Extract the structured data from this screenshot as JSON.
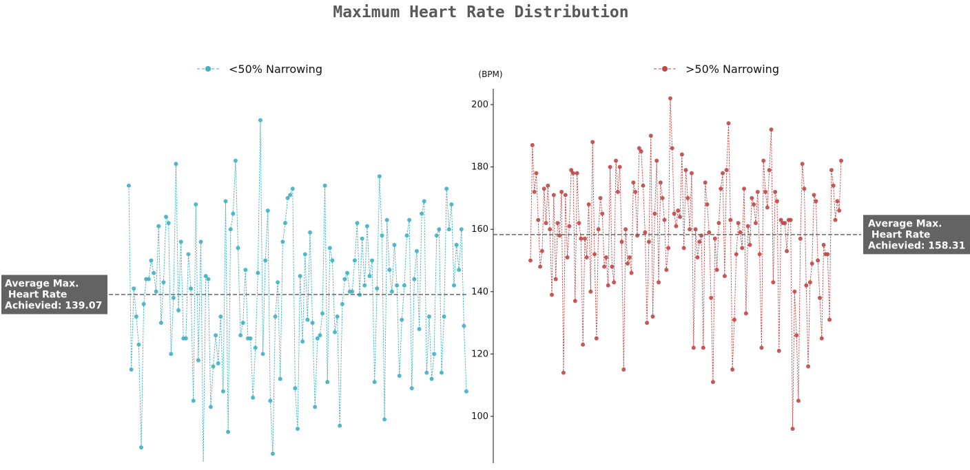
{
  "chart_data": {
    "type": "line",
    "title": "Maximum Heart Rate Distribution",
    "ylabel": "(BPM)",
    "ylim": [
      86,
      205
    ],
    "y_ticks": [
      100,
      120,
      140,
      160,
      180,
      200
    ],
    "grid": false,
    "legend_placement": "top-center",
    "panels": [
      {
        "name": "<50% Narrowing",
        "color": "#40b0c4",
        "average_value": 139.07,
        "average_label": "Average Max.\n Heart Rate\nAchievied: 139.07",
        "values": [
          174,
          115,
          141,
          132,
          123,
          90,
          136,
          144,
          144,
          150,
          146,
          140,
          161,
          130,
          143,
          164,
          162,
          120,
          138,
          181,
          134,
          156,
          125,
          125,
          152,
          141,
          105,
          168,
          118,
          156,
          85,
          145,
          144,
          103,
          116,
          126,
          117,
          132,
          108,
          169,
          95,
          160,
          165,
          182,
          154,
          126,
          130,
          147,
          125,
          125,
          106,
          122,
          146,
          195,
          120,
          150,
          166,
          105,
          88,
          132,
          143,
          112,
          156,
          162,
          170,
          171,
          173,
          109,
          96,
          145,
          124,
          152,
          131,
          159,
          130,
          103,
          125,
          126,
          133,
          174,
          111,
          154,
          150,
          127,
          132,
          97,
          136,
          144,
          146,
          140,
          140,
          150,
          162,
          139,
          157,
          142,
          161,
          145,
          150,
          111,
          141,
          177,
          158,
          99,
          163,
          147,
          140,
          155,
          142,
          113,
          131,
          142,
          158,
          163,
          109,
          144,
          153,
          128,
          165,
          169,
          114,
          132,
          112,
          120,
          158,
          160,
          114,
          132,
          173,
          160,
          168,
          142,
          155,
          147,
          160,
          129,
          108
        ]
      },
      {
        "name": ">50% Narrowing",
        "color": "#c04848",
        "average_value": 158.31,
        "average_label": "Average Max.\n Heart Rate\nAchievied: 158.31",
        "values": [
          150,
          187,
          172,
          178,
          163,
          148,
          153,
          173,
          162,
          174,
          160,
          139,
          171,
          144,
          162,
          158,
          172,
          114,
          171,
          151,
          161,
          179,
          178,
          137,
          178,
          162,
          157,
          123,
          157,
          151,
          168,
          140,
          188,
          152,
          125,
          160,
          170,
          165,
          148,
          151,
          142,
          180,
          148,
          143,
          182,
          172,
          180,
          156,
          115,
          160,
          149,
          151,
          146,
          175,
          172,
          158,
          186,
          185,
          174,
          159,
          130,
          156,
          190,
          132,
          165,
          182,
          143,
          175,
          170,
          163,
          147,
          154,
          202,
          186,
          165,
          161,
          166,
          164,
          184,
          154,
          179,
          170,
          160,
          178,
          122,
          160,
          151,
          156,
          158,
          122,
          175,
          168,
          159,
          138,
          111,
          157,
          147,
          162,
          173,
          178,
          145,
          179,
          194,
          163,
          115,
          131,
          152,
          162,
          159,
          154,
          173,
          133,
          161,
          155,
          170,
          168,
          162,
          172,
          152,
          122,
          182,
          172,
          167,
          179,
          192,
          143,
          172,
          169,
          121,
          163,
          162,
          162,
          153,
          163,
          163,
          96,
          140,
          126,
          105,
          157,
          181,
          173,
          142,
          116,
          143,
          149,
          171,
          169,
          150,
          138,
          125,
          155,
          152,
          152,
          131,
          179,
          174,
          163,
          169,
          166,
          182
        ]
      }
    ]
  }
}
